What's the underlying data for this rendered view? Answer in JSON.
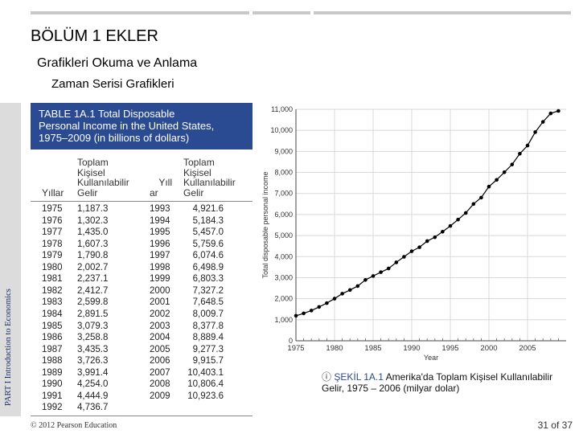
{
  "header": {
    "title": "BÖLÜM 1 EKLER",
    "subtitle": "Grafikleri Okuma ve Anlama",
    "subsubtitle": "Zaman Serisi Grafikleri"
  },
  "sidebar": {
    "label": "PART I Introduction to Economics"
  },
  "table": {
    "title": "TABLE 1A.1 Total Disposable Personal Income in the United States, 1975–2009 (in billions of dollars)",
    "title_lines": [
      "TABLE 1A.1  Total Disposable",
      "Personal Income in the United States,",
      "1975–2009 (in billions of dollars)"
    ],
    "col_year_left": "Yıllar",
    "col_income_left": [
      "Toplam",
      "Kişisel",
      "Kullanılabilir",
      "Gelir"
    ],
    "col_year_right": [
      "Yıll",
      "ar"
    ],
    "col_income_right": [
      "Toplam",
      "Kişisel",
      "Kullanılabilir",
      "Gelir"
    ],
    "left_years": [
      "1975",
      "1976",
      "1977",
      "1978",
      "1979",
      "1980",
      "1981",
      "1982",
      "1983",
      "1984",
      "1985",
      "1986",
      "1987",
      "1988",
      "1989",
      "1990",
      "1991",
      "1992"
    ],
    "left_values": [
      "1,187.3",
      "1,302.3",
      "1,435.0",
      "1,607.3",
      "1,790.8",
      "2,002.7",
      "2,237.1",
      "2,412.7",
      "2,599.8",
      "2,891.5",
      "3,079.3",
      "3,258.8",
      "3,435.3",
      "3,726.3",
      "3,991.4",
      "4,254.0",
      "4,444.9",
      "4,736.7"
    ],
    "right_years": [
      "1993",
      "1994",
      "1995",
      "1996",
      "1997",
      "1998",
      "1999",
      "2000",
      "2001",
      "2002",
      "2003",
      "2004",
      "2005",
      "2006",
      "2007",
      "2008",
      "2009"
    ],
    "right_values": [
      "4,921.6",
      "5,184.3",
      "5,457.0",
      "5,759.6",
      "6,074.6",
      "6,498.9",
      "6,803.3",
      "7,327.2",
      "7,648.5",
      "8,009.7",
      "8,377.8",
      "8,889.4",
      "9,277.3",
      "9,915.7",
      "10,403.1",
      "10,806.4",
      "10,923.6"
    ]
  },
  "caption": {
    "prefix": "",
    "figure_label": "ŞEKİL 1A.1",
    "text": " Amerika'da Toplam Kişisel Kullanılabilir Gelir, 1975 – 2006 (milyar dolar)"
  },
  "footer": {
    "copyright": "© 2012 Pearson Education",
    "page": "31 of 37"
  },
  "chart_data": {
    "type": "line",
    "title": "",
    "xlabel": "Year",
    "ylabel": "Total disposable personal income",
    "x": [
      1975,
      1976,
      1977,
      1978,
      1979,
      1980,
      1981,
      1982,
      1983,
      1984,
      1985,
      1986,
      1987,
      1988,
      1989,
      1990,
      1991,
      1992,
      1993,
      1994,
      1995,
      1996,
      1997,
      1998,
      1999,
      2000,
      2001,
      2002,
      2003,
      2004,
      2005,
      2006,
      2007,
      2008,
      2009
    ],
    "series": [
      {
        "values": [
          1187.3,
          1302.3,
          1435.0,
          1607.3,
          1790.8,
          2002.7,
          2237.1,
          2412.7,
          2599.8,
          2891.5,
          3079.3,
          3258.8,
          3435.3,
          3726.3,
          3991.4,
          4254.0,
          4444.9,
          4736.7,
          4921.6,
          5184.3,
          5457.0,
          5759.6,
          6074.6,
          6498.9,
          6803.3,
          7327.2,
          7648.5,
          8009.7,
          8377.8,
          8889.4,
          9277.3,
          9915.7,
          10403.1,
          10806.4,
          10923.6
        ]
      }
    ],
    "xlim": [
      1975,
      2010
    ],
    "ylim": [
      0,
      11000
    ],
    "x_ticks": [
      "1975",
      "1980",
      "1985",
      "1990",
      "1995",
      "2000",
      "2005"
    ],
    "x_tick_values": [
      1975,
      1980,
      1985,
      1990,
      1995,
      2000,
      2005
    ],
    "y_ticks": [
      "0",
      "1,000",
      "2,000",
      "3,000",
      "4,000",
      "5,000",
      "6,000",
      "7,000",
      "8,000",
      "9,000",
      "10,000",
      "11,000"
    ],
    "y_tick_values": [
      0,
      1000,
      2000,
      3000,
      4000,
      5000,
      6000,
      7000,
      8000,
      9000,
      10000,
      11000
    ],
    "grid": true,
    "line_color": "#000000",
    "marker": "filled-circle"
  }
}
